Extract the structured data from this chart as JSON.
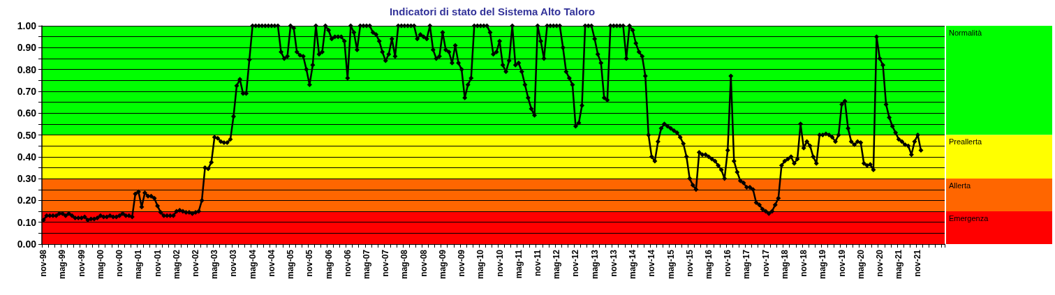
{
  "chart_data": {
    "type": "line",
    "title": "Indicatori di stato del Sistema Alto Taloro",
    "categories": [
      "nov-98",
      null,
      null,
      null,
      null,
      null,
      "mag-99",
      null,
      null,
      null,
      null,
      null,
      "nov-99",
      null,
      null,
      null,
      null,
      null,
      "mag-00",
      null,
      null,
      null,
      null,
      null,
      "nov-00",
      null,
      null,
      null,
      null,
      null,
      "mag-01",
      null,
      null,
      null,
      null,
      null,
      "nov-01",
      null,
      null,
      null,
      null,
      null,
      "mag-02",
      null,
      null,
      null,
      null,
      null,
      "nov-02",
      null,
      null,
      null,
      null,
      null,
      "mag-03",
      null,
      null,
      null,
      null,
      null,
      "nov-03",
      null,
      null,
      null,
      null,
      null,
      "mag-04",
      null,
      null,
      null,
      null,
      null,
      "nov-04",
      null,
      null,
      null,
      null,
      null,
      "mag-05",
      null,
      null,
      null,
      null,
      null,
      "nov-05",
      null,
      null,
      null,
      null,
      null,
      "mag-06",
      null,
      null,
      null,
      null,
      null,
      "nov-06",
      null,
      null,
      null,
      null,
      null,
      "mag-07",
      null,
      null,
      null,
      null,
      null,
      "nov-07",
      null,
      null,
      null,
      null,
      null,
      "mag-08",
      null,
      null,
      null,
      null,
      null,
      "nov-08",
      null,
      null,
      null,
      null,
      null,
      "mag-09",
      null,
      null,
      null,
      null,
      null,
      "nov-09",
      null,
      null,
      null,
      null,
      null,
      "mag-10",
      null,
      null,
      null,
      null,
      null,
      "nov-10",
      null,
      null,
      null,
      null,
      null,
      "mag-11",
      null,
      null,
      null,
      null,
      null,
      "nov-11",
      null,
      null,
      null,
      null,
      null,
      "mag-12",
      null,
      null,
      null,
      null,
      null,
      "nov-12",
      null,
      null,
      null,
      null,
      null,
      "mag-13",
      null,
      null,
      null,
      null,
      null,
      "nov-13",
      null,
      null,
      null,
      null,
      null,
      "mag-14",
      null,
      null,
      null,
      null,
      null,
      "nov-14",
      null,
      null,
      null,
      null,
      null,
      "mag-15",
      null,
      null,
      null,
      null,
      null,
      "nov-15",
      null,
      null,
      null,
      null,
      null,
      "mag-16",
      null,
      null,
      null,
      null,
      null,
      "nov-16",
      null,
      null,
      null,
      null,
      null,
      "mag-17",
      null,
      null,
      null,
      null,
      null,
      "nov-17",
      null,
      null,
      null,
      null,
      null,
      "mag-18",
      null,
      null,
      null,
      null,
      null,
      "nov-18",
      null,
      null,
      null,
      null,
      null,
      "mag-19",
      null,
      null,
      null,
      null,
      null,
      "nov-19",
      null,
      null,
      null,
      null,
      null,
      "mag-20",
      null,
      null,
      null,
      null,
      null,
      "nov-20",
      null,
      null,
      null,
      null,
      null,
      "mag-21",
      null,
      null,
      null,
      null,
      null,
      "nov-21",
      null,
      null,
      null,
      null,
      null,
      null,
      null,
      null
    ],
    "values": [
      0.11,
      0.13,
      0.13,
      0.13,
      0.13,
      0.14,
      0.14,
      0.13,
      0.14,
      0.13,
      0.12,
      0.12,
      0.12,
      0.125,
      0.11,
      0.115,
      0.115,
      0.12,
      0.13,
      0.125,
      0.125,
      0.13,
      0.125,
      0.125,
      0.13,
      0.14,
      0.13,
      0.13,
      0.125,
      0.23,
      0.24,
      0.17,
      0.235,
      0.22,
      0.22,
      0.21,
      0.175,
      0.145,
      0.13,
      0.13,
      0.13,
      0.13,
      0.15,
      0.155,
      0.15,
      0.145,
      0.145,
      0.14,
      0.145,
      0.15,
      0.2,
      0.35,
      0.345,
      0.375,
      0.49,
      0.485,
      0.47,
      0.465,
      0.465,
      0.48,
      0.585,
      0.725,
      0.755,
      0.69,
      0.69,
      0.845,
      1,
      1,
      1,
      1,
      1,
      1,
      1,
      1,
      1,
      0.88,
      0.85,
      0.86,
      1,
      0.99,
      0.88,
      0.865,
      0.86,
      0.8,
      0.73,
      0.82,
      1,
      0.87,
      0.88,
      1,
      0.98,
      0.94,
      0.95,
      0.95,
      0.95,
      0.93,
      0.76,
      1,
      0.97,
      0.89,
      1,
      1,
      1,
      1,
      0.97,
      0.96,
      0.93,
      0.88,
      0.84,
      0.87,
      0.94,
      0.86,
      1,
      1,
      1,
      1,
      1,
      1,
      0.94,
      0.96,
      0.95,
      0.94,
      1,
      0.89,
      0.85,
      0.86,
      0.97,
      0.89,
      0.88,
      0.83,
      0.91,
      0.83,
      0.8,
      0.67,
      0.73,
      0.76,
      1,
      1,
      1,
      1,
      1,
      0.97,
      0.87,
      0.88,
      0.93,
      0.82,
      0.79,
      0.84,
      1,
      0.82,
      0.83,
      0.79,
      0.73,
      0.67,
      0.62,
      0.59,
      1,
      0.93,
      0.85,
      1,
      1,
      1,
      1,
      1,
      0.9,
      0.79,
      0.76,
      0.73,
      0.54,
      0.555,
      0.635,
      1,
      1,
      1,
      0.94,
      0.87,
      0.83,
      0.67,
      0.66,
      1,
      1,
      1,
      1,
      1,
      0.85,
      1,
      0.98,
      0.92,
      0.88,
      0.86,
      0.77,
      0.5,
      0.4,
      0.38,
      0.47,
      0.53,
      0.55,
      0.54,
      0.53,
      0.52,
      0.51,
      0.49,
      0.46,
      0.4,
      0.3,
      0.27,
      0.25,
      0.42,
      0.41,
      0.41,
      0.4,
      0.39,
      0.38,
      0.36,
      0.34,
      0.3,
      0.43,
      0.77,
      0.38,
      0.33,
      0.29,
      0.28,
      0.26,
      0.26,
      0.25,
      0.19,
      0.18,
      0.16,
      0.15,
      0.14,
      0.15,
      0.18,
      0.21,
      0.36,
      0.38,
      0.39,
      0.4,
      0.37,
      0.39,
      0.55,
      0.44,
      0.47,
      0.45,
      0.4,
      0.37,
      0.5,
      0.5,
      0.505,
      0.5,
      0.49,
      0.47,
      0.5,
      0.64,
      0.655,
      0.53,
      0.47,
      0.455,
      0.47,
      0.465,
      0.37,
      0.36,
      0.365,
      0.34,
      0.95,
      0.85,
      0.82,
      0.64,
      0.58,
      0.54,
      0.51,
      0.48,
      0.47,
      0.455,
      0.45,
      0.41,
      0.47,
      0.5,
      0.43,
      null,
      null,
      null,
      null,
      null,
      null,
      null
    ],
    "color": "#000000",
    "marker": "diamond",
    "line_style": "solid",
    "grid": "y",
    "ylim": [
      0,
      1
    ],
    "yticks": [
      {
        "value": 0,
        "label": "0.00"
      },
      {
        "value": 0.05,
        "label": null
      },
      {
        "value": 0.1,
        "label": "0.10"
      },
      {
        "value": 0.15,
        "label": null
      },
      {
        "value": 0.2,
        "label": "0.20"
      },
      {
        "value": 0.25,
        "label": null
      },
      {
        "value": 0.3,
        "label": "0.30"
      },
      {
        "value": 0.35,
        "label": null
      },
      {
        "value": 0.4,
        "label": "0.40"
      },
      {
        "value": 0.45,
        "label": null
      },
      {
        "value": 0.5,
        "label": "0.50"
      },
      {
        "value": 0.55,
        "label": null
      },
      {
        "value": 0.6,
        "label": "0.60"
      },
      {
        "value": 0.65,
        "label": null
      },
      {
        "value": 0.7,
        "label": "0.70"
      },
      {
        "value": 0.75,
        "label": null
      },
      {
        "value": 0.8,
        "label": "0.80"
      },
      {
        "value": 0.85,
        "label": null
      },
      {
        "value": 0.9,
        "label": "0.90"
      },
      {
        "value": 0.95,
        "label": null
      },
      {
        "value": 1,
        "label": "1.00"
      }
    ],
    "bands": [
      {
        "axis": "y",
        "from": 0.5,
        "to": 1,
        "label": "Normalità",
        "color": "#00ff00"
      },
      {
        "axis": "y",
        "from": 0.3,
        "to": 0.5,
        "label": "Preallerta",
        "color": "#ffff00"
      },
      {
        "axis": "y",
        "from": 0.15,
        "to": 0.3,
        "label": "Allerta",
        "color": "#ff6600"
      },
      {
        "axis": "y",
        "from": 0,
        "to": 0.15,
        "label": "Emergenza",
        "color": "#ff0000"
      }
    ]
  }
}
